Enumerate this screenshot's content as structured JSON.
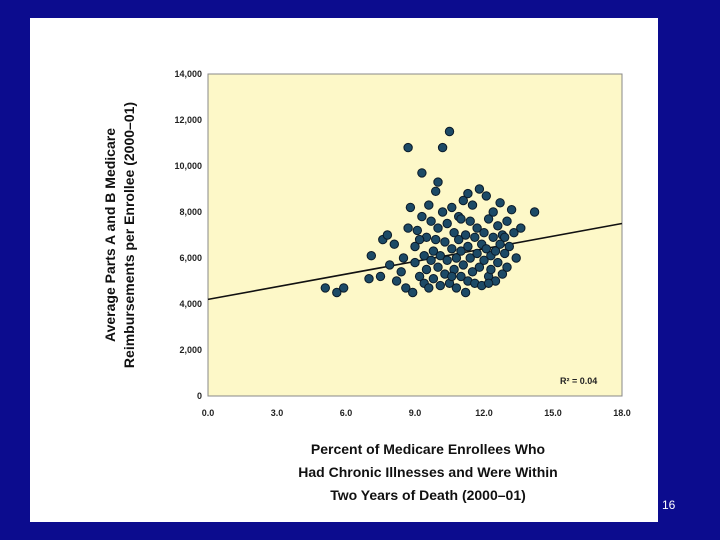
{
  "slide": {
    "page_number": "16",
    "colors": {
      "background": "#0c0c8e",
      "panel": "#ffffff",
      "plot_area": "#fdf8c8",
      "point": "#1c4a66",
      "point_stroke": "#0a1a28"
    }
  },
  "chart_data": {
    "type": "scatter",
    "ylabel_line1": "Average Parts A and B Medicare",
    "ylabel_line2": "Reimbursements per Enrollee (2000–01)",
    "xlabel_line1": "Percent of Medicare Enrollees Who",
    "xlabel_line2": "Had Chronic Illnesses and Were Within",
    "xlabel_line3": "Two Years of Death (2000–01)",
    "xlim": [
      0,
      18
    ],
    "ylim": [
      0,
      14000
    ],
    "x_ticks": [
      "0.0",
      "3.0",
      "6.0",
      "9.0",
      "12.0",
      "15.0",
      "18.0"
    ],
    "y_ticks": [
      "0",
      "2,000",
      "4,000",
      "6,000",
      "8,000",
      "10,000",
      "12,000",
      "14,000"
    ],
    "annotation": "R² = 0.04",
    "trendline": {
      "x": [
        0,
        18
      ],
      "y": [
        4200,
        7500
      ]
    },
    "points": [
      {
        "x": 5.1,
        "y": 4700
      },
      {
        "x": 5.6,
        "y": 4500
      },
      {
        "x": 5.9,
        "y": 4700
      },
      {
        "x": 7.1,
        "y": 6100
      },
      {
        "x": 7.0,
        "y": 5100
      },
      {
        "x": 7.5,
        "y": 5200
      },
      {
        "x": 7.6,
        "y": 6800
      },
      {
        "x": 7.8,
        "y": 7000
      },
      {
        "x": 7.9,
        "y": 5700
      },
      {
        "x": 8.1,
        "y": 6600
      },
      {
        "x": 8.2,
        "y": 5000
      },
      {
        "x": 8.4,
        "y": 5400
      },
      {
        "x": 8.5,
        "y": 6000
      },
      {
        "x": 8.6,
        "y": 4700
      },
      {
        "x": 8.7,
        "y": 7300
      },
      {
        "x": 8.7,
        "y": 10800
      },
      {
        "x": 8.8,
        "y": 8200
      },
      {
        "x": 8.9,
        "y": 4500
      },
      {
        "x": 9.0,
        "y": 5800
      },
      {
        "x": 9.0,
        "y": 6500
      },
      {
        "x": 9.1,
        "y": 7200
      },
      {
        "x": 9.2,
        "y": 5200
      },
      {
        "x": 9.3,
        "y": 9700
      },
      {
        "x": 9.3,
        "y": 7800
      },
      {
        "x": 9.4,
        "y": 4900
      },
      {
        "x": 9.4,
        "y": 6100
      },
      {
        "x": 9.5,
        "y": 5500
      },
      {
        "x": 9.5,
        "y": 6900
      },
      {
        "x": 9.6,
        "y": 8300
      },
      {
        "x": 9.6,
        "y": 4700
      },
      {
        "x": 9.7,
        "y": 5900
      },
      {
        "x": 9.7,
        "y": 7600
      },
      {
        "x": 9.8,
        "y": 6300
      },
      {
        "x": 9.8,
        "y": 5100
      },
      {
        "x": 9.9,
        "y": 8900
      },
      {
        "x": 9.9,
        "y": 6800
      },
      {
        "x": 10.0,
        "y": 5600
      },
      {
        "x": 10.0,
        "y": 7300
      },
      {
        "x": 10.1,
        "y": 4800
      },
      {
        "x": 10.1,
        "y": 6100
      },
      {
        "x": 10.2,
        "y": 10800
      },
      {
        "x": 10.2,
        "y": 8000
      },
      {
        "x": 10.3,
        "y": 5300
      },
      {
        "x": 10.3,
        "y": 6700
      },
      {
        "x": 10.4,
        "y": 7500
      },
      {
        "x": 10.4,
        "y": 5900
      },
      {
        "x": 10.5,
        "y": 11500
      },
      {
        "x": 10.5,
        "y": 4900
      },
      {
        "x": 10.6,
        "y": 6400
      },
      {
        "x": 10.6,
        "y": 8200
      },
      {
        "x": 10.7,
        "y": 5500
      },
      {
        "x": 10.7,
        "y": 7100
      },
      {
        "x": 10.8,
        "y": 6000
      },
      {
        "x": 10.8,
        "y": 4700
      },
      {
        "x": 10.9,
        "y": 6800
      },
      {
        "x": 10.9,
        "y": 7800
      },
      {
        "x": 11.0,
        "y": 5200
      },
      {
        "x": 11.0,
        "y": 6300
      },
      {
        "x": 11.1,
        "y": 8500
      },
      {
        "x": 11.1,
        "y": 5700
      },
      {
        "x": 11.2,
        "y": 7000
      },
      {
        "x": 11.2,
        "y": 4500
      },
      {
        "x": 11.3,
        "y": 6500
      },
      {
        "x": 11.3,
        "y": 5000
      },
      {
        "x": 11.4,
        "y": 7600
      },
      {
        "x": 11.4,
        "y": 6000
      },
      {
        "x": 11.5,
        "y": 5400
      },
      {
        "x": 11.5,
        "y": 8300
      },
      {
        "x": 11.6,
        "y": 6900
      },
      {
        "x": 11.6,
        "y": 4900
      },
      {
        "x": 11.7,
        "y": 6200
      },
      {
        "x": 11.7,
        "y": 7300
      },
      {
        "x": 11.8,
        "y": 9000
      },
      {
        "x": 11.8,
        "y": 5600
      },
      {
        "x": 11.9,
        "y": 6600
      },
      {
        "x": 11.9,
        "y": 4800
      },
      {
        "x": 12.0,
        "y": 7100
      },
      {
        "x": 12.0,
        "y": 5900
      },
      {
        "x": 12.1,
        "y": 8700
      },
      {
        "x": 12.1,
        "y": 6400
      },
      {
        "x": 12.2,
        "y": 5200
      },
      {
        "x": 12.2,
        "y": 7700
      },
      {
        "x": 12.3,
        "y": 6100
      },
      {
        "x": 12.3,
        "y": 5500
      },
      {
        "x": 12.4,
        "y": 6900
      },
      {
        "x": 12.4,
        "y": 8000
      },
      {
        "x": 12.5,
        "y": 5000
      },
      {
        "x": 12.5,
        "y": 6300
      },
      {
        "x": 12.6,
        "y": 7400
      },
      {
        "x": 12.6,
        "y": 5800
      },
      {
        "x": 12.7,
        "y": 6600
      },
      {
        "x": 12.7,
        "y": 8400
      },
      {
        "x": 12.8,
        "y": 5300
      },
      {
        "x": 12.8,
        "y": 7000
      },
      {
        "x": 12.9,
        "y": 6200
      },
      {
        "x": 13.0,
        "y": 7600
      },
      {
        "x": 13.0,
        "y": 5600
      },
      {
        "x": 13.1,
        "y": 6500
      },
      {
        "x": 13.2,
        "y": 8100
      },
      {
        "x": 13.3,
        "y": 7100
      },
      {
        "x": 13.4,
        "y": 6000
      },
      {
        "x": 13.6,
        "y": 7300
      },
      {
        "x": 14.2,
        "y": 8000
      },
      {
        "x": 12.2,
        "y": 4900
      },
      {
        "x": 10.0,
        "y": 9300
      },
      {
        "x": 11.3,
        "y": 8800
      },
      {
        "x": 9.2,
        "y": 6800
      },
      {
        "x": 10.6,
        "y": 5200
      },
      {
        "x": 12.9,
        "y": 6900
      },
      {
        "x": 11.0,
        "y": 7700
      }
    ]
  }
}
